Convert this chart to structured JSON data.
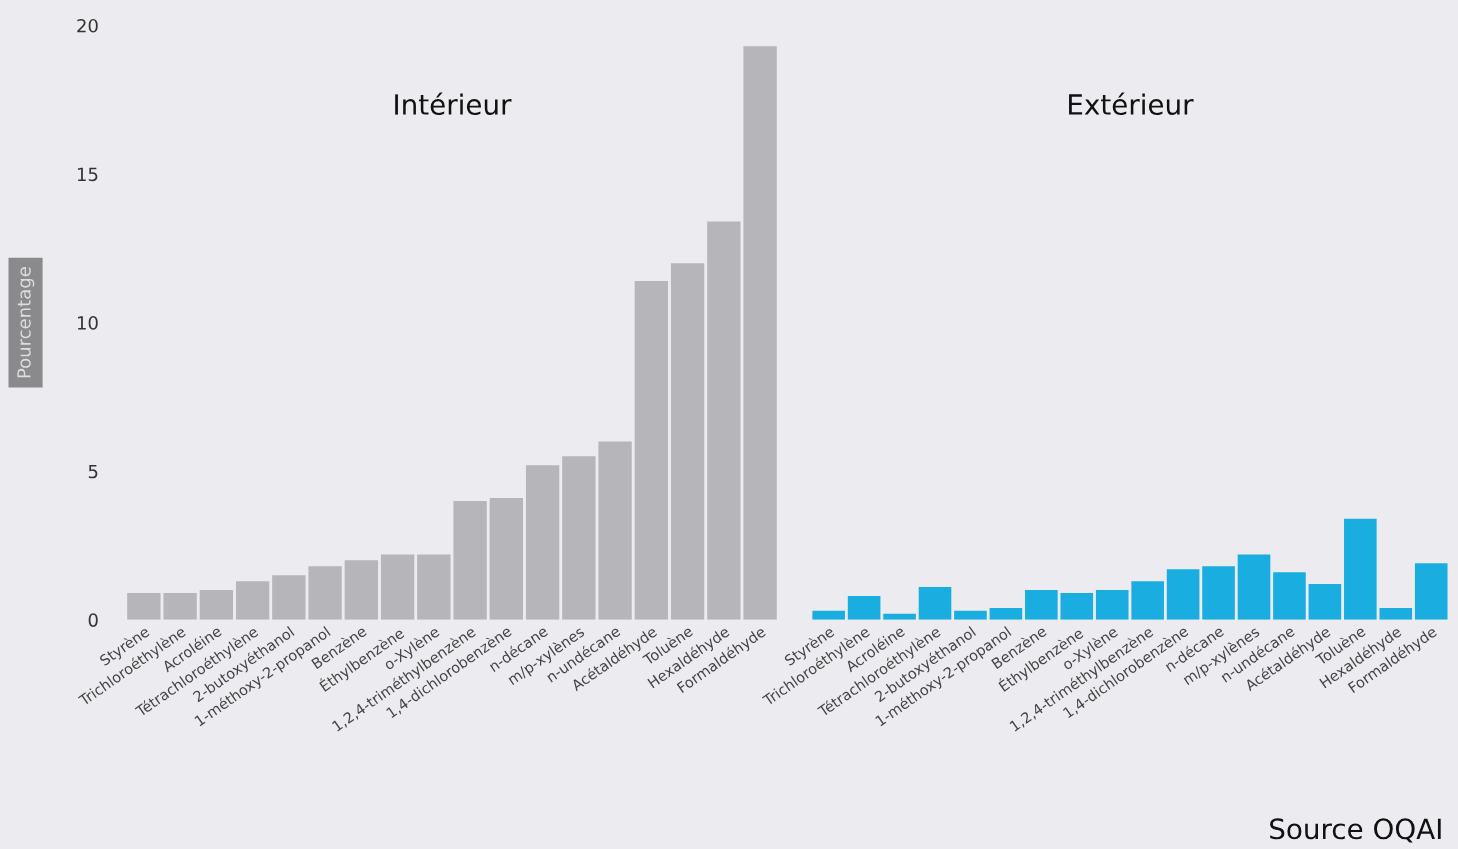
{
  "chart_data": [
    {
      "type": "bar",
      "title": "Intérieur",
      "ylabel": "Pourcentage",
      "color": "#b5b5ba",
      "ylim": [
        0,
        20
      ],
      "yticks": [
        0,
        5,
        10,
        15,
        20
      ],
      "grid": false,
      "categories": [
        "Styrène",
        "Trichloroéthylène",
        "Acroléine",
        "Tétrachloroéthylène",
        "2-butoxyéthanol",
        "1-méthoxy-2-propanol",
        "Benzène",
        "Éthylbenzène",
        "o-Xylène",
        "1,2,4-triméthylbenzène",
        "1,4-dichlorobenzène",
        "n-décane",
        "m/p-xylènes",
        "n-undécane",
        "Acétaldéhyde",
        "Toluène",
        "Hexaldéhyde",
        "Formaldéhyde"
      ],
      "values": [
        0.9,
        0.9,
        1.0,
        1.3,
        1.5,
        1.8,
        2.0,
        2.2,
        2.2,
        4.0,
        4.1,
        5.2,
        5.5,
        6.0,
        11.4,
        12.0,
        13.4,
        19.3
      ]
    },
    {
      "type": "bar",
      "title": "Extérieur",
      "color": "#1aade0",
      "ylim": [
        0,
        20
      ],
      "tick_labels": "x",
      "grid": false,
      "categories": [
        "Styrène",
        "Trichloroéthylène",
        "Acroléine",
        "Tétrachloroéthylène",
        "2-butoxyéthanol",
        "1-méthoxy-2-propanol",
        "Benzène",
        "Éthylbenzène",
        "o-Xylène",
        "1,2,4-triméthylbenzène",
        "1,4-dichlorobenzène",
        "n-décane",
        "m/p-xylènes",
        "n-undécane",
        "Acétaldéhyde",
        "Toluène",
        "Hexaldéhyde",
        "Formaldéhyde"
      ],
      "values": [
        0.3,
        0.8,
        0.2,
        1.1,
        0.3,
        0.4,
        1.0,
        0.9,
        1.0,
        1.3,
        1.7,
        1.8,
        2.2,
        1.6,
        1.2,
        3.4,
        0.4,
        1.9
      ],
      "annotations": [
        "Source OQAI"
      ]
    }
  ]
}
